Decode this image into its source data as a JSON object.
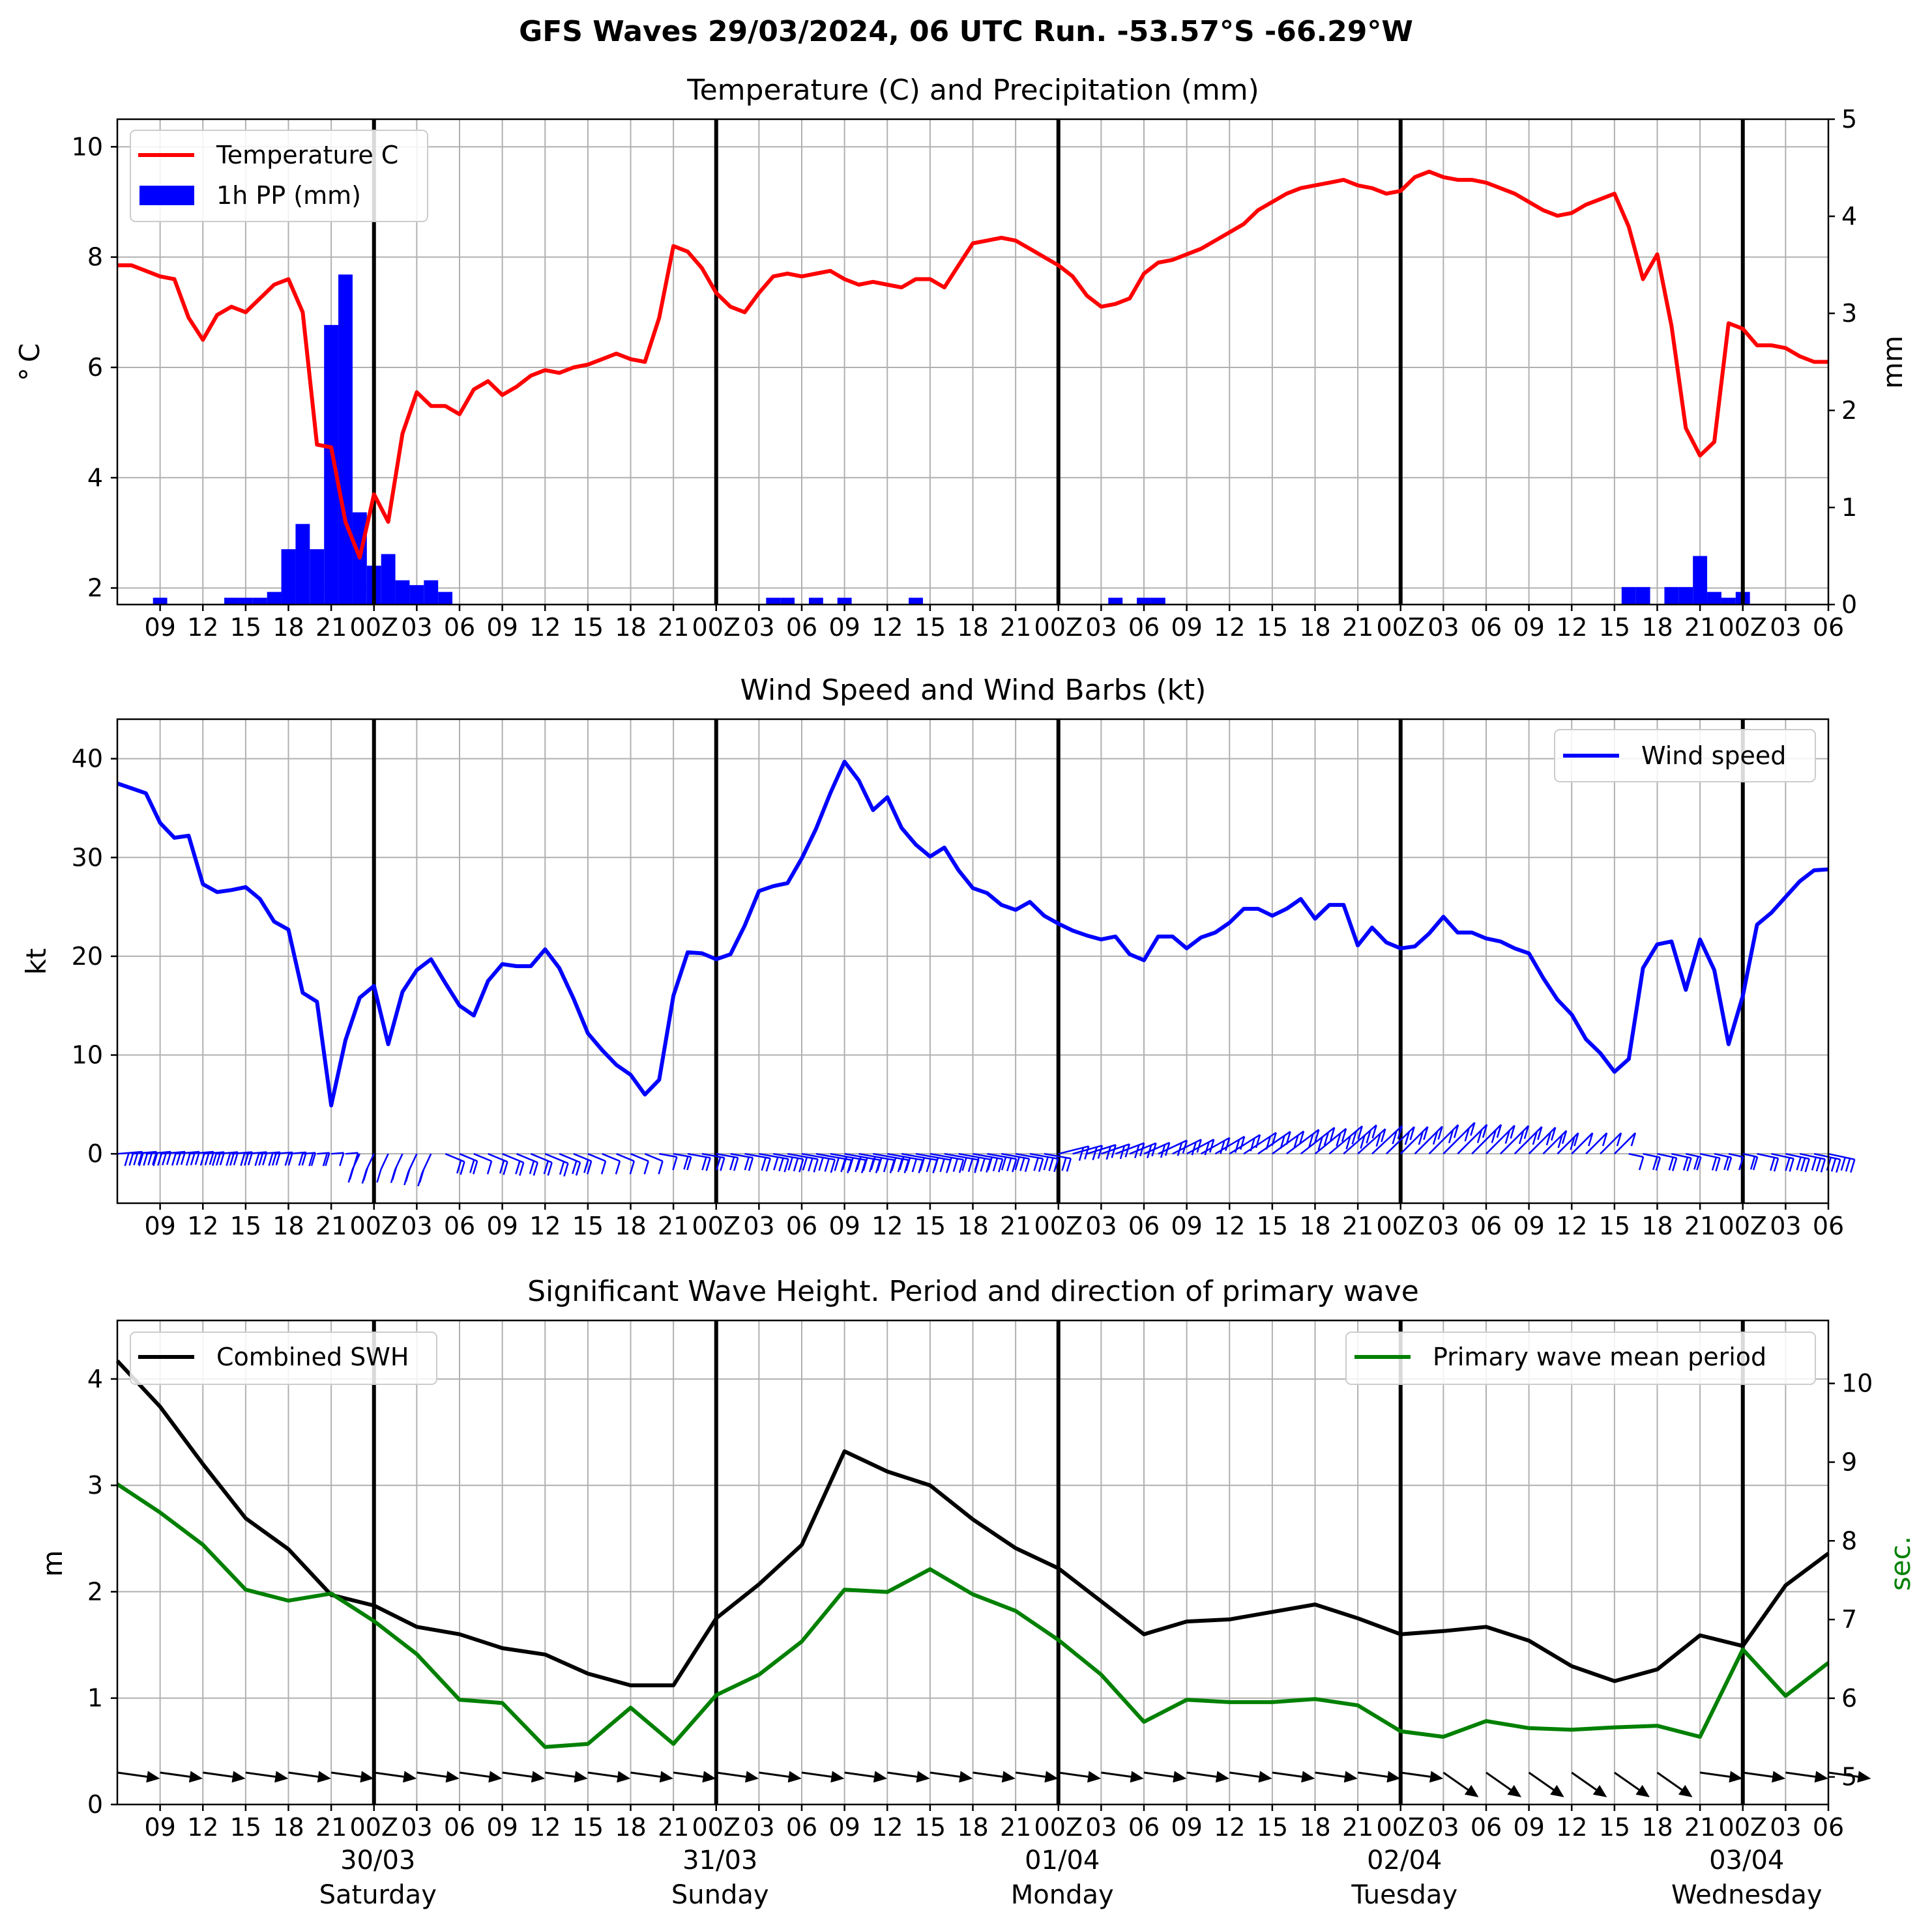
{
  "title": "GFS Waves 29/03/2024, 06 UTC Run. -53.57°S -66.29°W",
  "hour_labels": [
    "09",
    "12",
    "15",
    "18",
    "21",
    "00Z",
    "03",
    "06",
    "09",
    "12",
    "15",
    "18",
    "21",
    "00Z",
    "03",
    "06",
    "09",
    "12",
    "15",
    "18",
    "21",
    "00Z",
    "03",
    "06",
    "09",
    "12",
    "15",
    "18",
    "21",
    "00Z",
    "03",
    "06",
    "09",
    "12",
    "15",
    "18",
    "21",
    "00Z",
    "03",
    "06"
  ],
  "day_labels": [
    {
      "date": "30/03",
      "weekday": "Saturday"
    },
    {
      "date": "31/03",
      "weekday": "Sunday"
    },
    {
      "date": "01/04",
      "weekday": "Monday"
    },
    {
      "date": "02/04",
      "weekday": "Tuesday"
    },
    {
      "date": "03/04",
      "weekday": "Wednesday"
    }
  ],
  "colors": {
    "temperature": "#ff0000",
    "precipitation": "#0000ff",
    "wind": "#0000ff",
    "swh": "#000000",
    "period": "#008000",
    "grid": "#b0b0b0"
  },
  "chart_data": [
    {
      "type": "line",
      "title": "Temperature (C) and Precipitation (mm)",
      "ylabel": "$^\\circ$C",
      "ylabel_right": "mm",
      "x_range": [
        "29/03 06Z",
        "03/04 06Z"
      ],
      "x_step_hours": 1,
      "ylim": [
        1.7,
        10.5
      ],
      "ylim_right": [
        0,
        5
      ],
      "yticks": [
        2,
        4,
        6,
        8,
        10
      ],
      "yticks_right": [
        0,
        1,
        2,
        3,
        4,
        5
      ],
      "legend": {
        "placement": "upper-left",
        "entries": [
          "Temperature C",
          "1h PP (mm)"
        ]
      },
      "series": [
        {
          "name": "Temperature C",
          "x_hours": [
            0,
            1,
            2,
            3,
            4,
            5,
            6,
            7,
            8,
            9,
            10,
            11,
            12,
            13,
            14,
            15,
            16,
            17,
            18,
            19,
            20,
            21,
            22,
            23,
            24,
            25,
            26,
            27,
            28,
            29,
            30,
            31,
            32,
            33,
            34,
            35,
            36,
            37,
            38,
            39,
            40,
            41,
            42,
            43,
            44,
            45,
            46,
            47,
            48,
            49,
            50,
            51,
            52,
            53,
            54,
            55,
            56,
            57,
            58,
            59,
            60,
            61,
            62,
            63,
            64,
            65,
            66,
            67,
            68,
            69,
            70,
            71,
            72,
            73,
            74,
            75,
            76,
            77,
            78,
            79,
            80,
            81,
            82,
            83,
            84,
            85,
            86,
            87,
            88,
            89,
            90,
            91,
            92,
            93,
            94,
            95,
            96,
            97,
            98,
            99,
            100,
            101,
            102,
            103,
            104,
            105,
            106,
            107,
            108,
            109,
            110,
            111,
            112,
            113,
            114,
            115,
            116,
            117,
            118,
            119,
            120
          ],
          "values": [
            7.85,
            7.85,
            7.75,
            7.65,
            7.6,
            6.9,
            6.5,
            6.95,
            7.1,
            7.0,
            7.25,
            7.5,
            7.6,
            7.0,
            4.6,
            4.55,
            3.2,
            2.55,
            3.7,
            3.2,
            4.8,
            5.55,
            5.3,
            5.3,
            5.15,
            5.6,
            5.75,
            5.5,
            5.65,
            5.85,
            5.95,
            5.9,
            6.0,
            6.05,
            6.15,
            6.25,
            6.15,
            6.1,
            6.9,
            8.2,
            8.1,
            7.8,
            7.35,
            7.1,
            7.0,
            7.35,
            7.65,
            7.7,
            7.65,
            7.7,
            7.75,
            7.6,
            7.5,
            7.55,
            7.5,
            7.45,
            7.6,
            7.6,
            7.45,
            7.85,
            8.25,
            8.3,
            8.35,
            8.3,
            8.15,
            8.0,
            7.85,
            7.65,
            7.3,
            7.1,
            7.15,
            7.25,
            7.7,
            7.9,
            7.95,
            8.05,
            8.15,
            8.3,
            8.45,
            8.6,
            8.85,
            9.0,
            9.15,
            9.25,
            9.3,
            9.35,
            9.4,
            9.3,
            9.25,
            9.15,
            9.2,
            9.45,
            9.55,
            9.45,
            9.4,
            9.4,
            9.35,
            9.25,
            9.15,
            9.0,
            8.85,
            8.75,
            8.8,
            8.95,
            9.05,
            9.15,
            8.55,
            7.6,
            8.05,
            6.75,
            4.9,
            4.4,
            4.65,
            6.8,
            6.7,
            6.4,
            6.4,
            6.35,
            6.2,
            6.1,
            6.1
          ]
        },
        {
          "name": "1h PP (mm)",
          "axis": "right",
          "bars": [
            {
              "hour": 3,
              "value": 0.07
            },
            {
              "hour": 8,
              "value": 0.07
            },
            {
              "hour": 9,
              "value": 0.07
            },
            {
              "hour": 10,
              "value": 0.07
            },
            {
              "hour": 11,
              "value": 0.13
            },
            {
              "hour": 12,
              "value": 0.57
            },
            {
              "hour": 13,
              "value": 0.83
            },
            {
              "hour": 14,
              "value": 0.57
            },
            {
              "hour": 15,
              "value": 2.88
            },
            {
              "hour": 16,
              "value": 3.4
            },
            {
              "hour": 17,
              "value": 0.95
            },
            {
              "hour": 18,
              "value": 0.4
            },
            {
              "hour": 19,
              "value": 0.52
            },
            {
              "hour": 20,
              "value": 0.25
            },
            {
              "hour": 21,
              "value": 0.2
            },
            {
              "hour": 22,
              "value": 0.25
            },
            {
              "hour": 23,
              "value": 0.13
            },
            {
              "hour": 46,
              "value": 0.07
            },
            {
              "hour": 47,
              "value": 0.07
            },
            {
              "hour": 49,
              "value": 0.07
            },
            {
              "hour": 51,
              "value": 0.07
            },
            {
              "hour": 56,
              "value": 0.07
            },
            {
              "hour": 70,
              "value": 0.07
            },
            {
              "hour": 72,
              "value": 0.07
            },
            {
              "hour": 73,
              "value": 0.07
            },
            {
              "hour": 106,
              "value": 0.18
            },
            {
              "hour": 107,
              "value": 0.18
            },
            {
              "hour": 109,
              "value": 0.18
            },
            {
              "hour": 110,
              "value": 0.18
            },
            {
              "hour": 111,
              "value": 0.5
            },
            {
              "hour": 112,
              "value": 0.13
            },
            {
              "hour": 113,
              "value": 0.07
            },
            {
              "hour": 114,
              "value": 0.13
            }
          ]
        }
      ]
    },
    {
      "type": "line",
      "title": "Wind Speed and Wind Barbs (kt)",
      "ylabel": "kt",
      "x_range": [
        "29/03 06Z",
        "03/04 06Z"
      ],
      "ylim": [
        -5,
        44
      ],
      "yticks": [
        0,
        10,
        20,
        30,
        40
      ],
      "legend": {
        "placement": "upper-right",
        "entries": [
          "Wind speed"
        ]
      },
      "series": [
        {
          "name": "Wind speed",
          "x_hours": [
            0,
            1,
            2,
            3,
            4,
            5,
            6,
            7,
            8,
            9,
            10,
            11,
            12,
            13,
            14,
            15,
            16,
            17,
            18,
            19,
            20,
            21,
            22,
            23,
            24,
            25,
            26,
            27,
            28,
            29,
            30,
            31,
            32,
            33,
            34,
            35,
            36,
            37,
            38,
            39,
            40,
            41,
            42,
            43,
            44,
            45,
            46,
            47,
            48,
            49,
            50,
            51,
            52,
            53,
            54,
            55,
            56,
            57,
            58,
            59,
            60,
            61,
            62,
            63,
            64,
            65,
            66,
            67,
            68,
            69,
            70,
            71,
            72,
            73,
            74,
            75,
            76,
            77,
            78,
            79,
            80,
            81,
            82,
            83,
            84,
            85,
            86,
            87,
            88,
            89,
            90,
            91,
            92,
            93,
            94,
            95,
            96,
            97,
            98,
            99,
            100,
            101,
            102,
            103,
            104,
            105,
            106,
            107,
            108,
            109,
            110,
            111,
            112,
            113,
            114,
            115,
            116,
            117,
            118,
            119,
            120
          ],
          "values": [
            37.5,
            37,
            36.5,
            33.5,
            32,
            32.2,
            27.3,
            26.5,
            26.7,
            27,
            25.8,
            23.5,
            22.7,
            16.3,
            15.4,
            4.9,
            11.5,
            15.8,
            17,
            11.1,
            16.4,
            18.6,
            19.7,
            17.3,
            15,
            14,
            17.5,
            19.2,
            19,
            19,
            20.7,
            18.8,
            15.7,
            12.2,
            10.5,
            9,
            8,
            6,
            7.5,
            16,
            20.4,
            20.3,
            19.7,
            20.2,
            23.1,
            26.6,
            27.1,
            27.4,
            29.9,
            32.9,
            36.5,
            39.7,
            37.8,
            34.8,
            36.1,
            33,
            31.3,
            30.1,
            31,
            28.7,
            26.9,
            26.4,
            25.2,
            24.7,
            25.5,
            24.1,
            23.3,
            22.6,
            22.1,
            21.7,
            22,
            20.2,
            19.6,
            22,
            22,
            20.8,
            21.9,
            22.4,
            23.4,
            24.8,
            24.8,
            24.1,
            24.8,
            25.8,
            23.8,
            25.2,
            25.2,
            21.1,
            22.9,
            21.4,
            20.8,
            21,
            22.3,
            24,
            22.4,
            22.4,
            21.8,
            21.5,
            20.8,
            20.3,
            17.8,
            15.6,
            14.1,
            11.6,
            10.2,
            8.3,
            9.6,
            18.8,
            21.2,
            21.5,
            16.6,
            21.7,
            18.6,
            11.1,
            16,
            23.2,
            24.4,
            26,
            27.6,
            28.7,
            28.8
          ]
        }
      ],
      "wind_barbs": {
        "row_value": 0,
        "direction_band_hours": [
          [
            0,
            17,
            "northward-light"
          ],
          [
            17,
            23,
            "southward"
          ],
          [
            23,
            38,
            "southward"
          ],
          [
            38,
            66,
            "flat"
          ],
          [
            66,
            106,
            "northward-rising"
          ],
          [
            106,
            120,
            "flat"
          ]
        ]
      }
    },
    {
      "type": "line",
      "title": "Significant Wave Height. Period and direction of primary wave",
      "ylabel": "m",
      "ylabel_right": "sec.",
      "x_range": [
        "29/03 06Z",
        "03/04 06Z"
      ],
      "ylim": [
        0,
        4.55
      ],
      "ylim_right": [
        4.65,
        10.8
      ],
      "yticks": [
        0,
        1,
        2,
        3,
        4
      ],
      "yticks_right": [
        5,
        6,
        7,
        8,
        9,
        10
      ],
      "legends": [
        {
          "placement": "upper-left",
          "entries": [
            "Combined SWH"
          ]
        },
        {
          "placement": "upper-right",
          "entries": [
            "Primary wave mean period"
          ]
        }
      ],
      "series": [
        {
          "name": "Combined SWH",
          "x_hours": [
            0,
            3,
            6,
            9,
            12,
            15,
            18,
            21,
            24,
            27,
            30,
            33,
            36,
            39,
            42,
            45,
            48,
            51,
            54,
            57,
            60,
            63,
            66,
            69,
            72,
            75,
            78,
            81,
            84,
            87,
            90,
            93,
            96,
            99,
            102,
            105,
            108,
            111,
            114,
            117,
            120
          ],
          "values": [
            4.17,
            3.74,
            3.2,
            2.69,
            2.4,
            1.97,
            1.87,
            1.67,
            1.6,
            1.47,
            1.41,
            1.23,
            1.12,
            1.12,
            1.75,
            2.07,
            2.44,
            3.32,
            3.13,
            3.0,
            2.68,
            2.41,
            2.22,
            1.91,
            1.6,
            1.72,
            1.74,
            1.81,
            1.88,
            1.75,
            1.6,
            1.63,
            1.67,
            1.54,
            1.3,
            1.16,
            1.27,
            1.59,
            1.49,
            2.06,
            2.36
          ]
        },
        {
          "name": "Primary wave mean period",
          "axis": "right",
          "x_hours": [
            0,
            3,
            6,
            9,
            12,
            15,
            18,
            21,
            24,
            27,
            30,
            33,
            36,
            39,
            42,
            45,
            48,
            51,
            54,
            57,
            60,
            63,
            66,
            69,
            72,
            75,
            78,
            81,
            84,
            87,
            90,
            93,
            96,
            99,
            102,
            105,
            108,
            111,
            114,
            117,
            120
          ],
          "values": [
            8.72,
            8.36,
            7.95,
            7.38,
            7.24,
            7.33,
            6.98,
            6.56,
            5.98,
            5.94,
            5.38,
            5.42,
            5.88,
            5.42,
            6.04,
            6.3,
            6.72,
            7.38,
            7.35,
            7.64,
            7.32,
            7.11,
            6.74,
            6.3,
            5.7,
            5.98,
            5.95,
            5.95,
            5.99,
            5.91,
            5.58,
            5.51,
            5.71,
            5.62,
            5.6,
            5.63,
            5.65,
            5.51,
            6.62,
            6.03,
            6.45
          ]
        }
      ],
      "direction_arrows": {
        "row_value": 0.3,
        "x_step_hours": 3,
        "count": 41
      }
    }
  ]
}
